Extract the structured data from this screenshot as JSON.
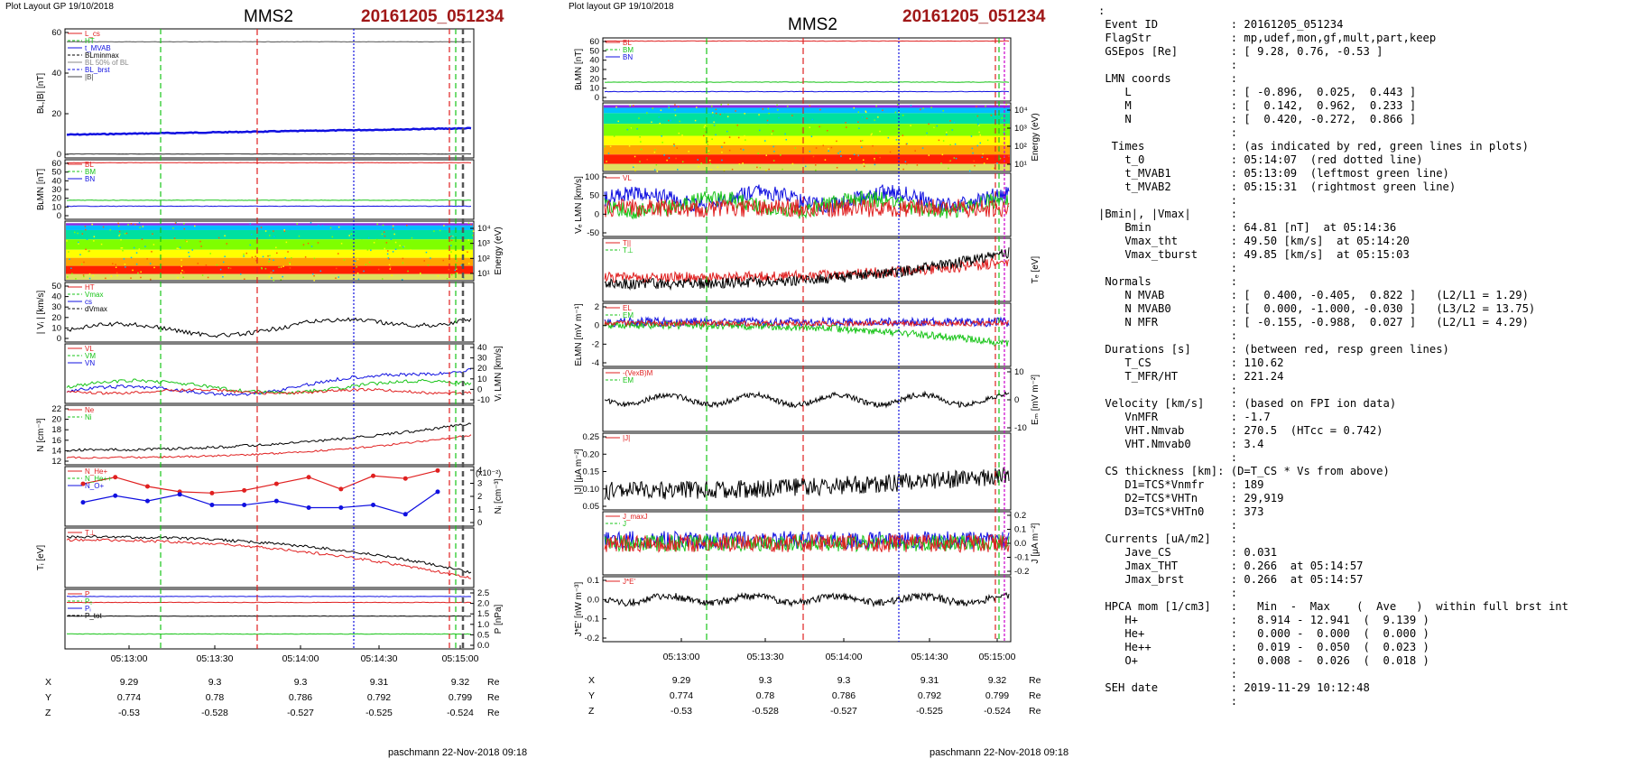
{
  "left_plot": {
    "header": "Plot Layout GP 19/10/2018",
    "probe": "MMS2",
    "event": "20161205_051234",
    "footer": "paschmann 22-Nov-2018 09:18",
    "panels": [
      {
        "ylabel": "Bʟ,|B| [nT]",
        "ticks": [
          "0",
          "20",
          "40",
          "60"
        ],
        "right_ticks": [],
        "legend": [
          "L_cs",
          "HT",
          "t_MVAB",
          "BLminmax",
          "BL 50% of BL",
          "BL_brst",
          "|B|"
        ]
      },
      {
        "ylabel": "BʟMN [nT]",
        "ticks": [
          "0",
          "10",
          "20",
          "30",
          "40",
          "50",
          "60"
        ],
        "right_ticks": [],
        "legend": [
          "BL",
          "BM",
          "BN"
        ]
      },
      {
        "ylabel": "",
        "ticks": [],
        "right_ticks": [
          "10⁴",
          "10³",
          "10²",
          "10¹"
        ],
        "right_label": "Energy (eV)",
        "legend": []
      },
      {
        "ylabel": "| Vᵢ | [km/s]",
        "ticks": [
          "0",
          "10",
          "20",
          "30",
          "40",
          "50"
        ],
        "right_ticks": [],
        "legend": [
          "HT",
          "Vmax",
          "cs",
          "dVmax"
        ]
      },
      {
        "ylabel": "",
        "ticks": [],
        "right_ticks": [
          "-10",
          "0",
          "10",
          "20",
          "30",
          "40"
        ],
        "right_label": "Vᵢ LMN [km/s]",
        "legend": [
          "VL",
          "VM",
          "VN"
        ]
      },
      {
        "ylabel": "N [cm⁻³]",
        "ticks": [
          "12",
          "14",
          "16",
          "18",
          "20",
          "22"
        ],
        "right_ticks": [],
        "legend": [
          "Ne",
          "Ni"
        ]
      },
      {
        "ylabel": "",
        "ticks": [],
        "right_ticks": [
          "0",
          "1",
          "2",
          "3",
          "4"
        ],
        "right_label": "Nᵢ [cm⁻³]",
        "extra": "(x10⁻²)",
        "legend": [
          "N_He+",
          "N_He++",
          "N_O+"
        ]
      },
      {
        "ylabel": "Tᵢ [eV]",
        "ticks": [],
        "right_ticks": [],
        "legend": [
          "T⊥"
        ]
      },
      {
        "ylabel": "",
        "ticks": [],
        "right_ticks": [
          "0.0",
          "0.5",
          "1.0",
          "1.5",
          "2.0",
          "2.5"
        ],
        "right_label": "P [nPa]",
        "legend": [
          "P",
          "Pₑ",
          "Pᵢ",
          "P_tot"
        ]
      }
    ],
    "time_ticks": [
      "05:13:00",
      "05:13:30",
      "05:14:00",
      "05:14:30",
      "05:15:00"
    ],
    "pos_rows": [
      {
        "label": "X",
        "values": [
          "9.29",
          "9.3",
          "9.3",
          "9.31",
          "9.32"
        ],
        "unit": "Re"
      },
      {
        "label": "Y",
        "values": [
          "0.774",
          "0.78",
          "0.786",
          "0.792",
          "0.799"
        ],
        "unit": "Re"
      },
      {
        "label": "Z",
        "values": [
          "-0.53",
          "-0.528",
          "-0.527",
          "-0.525",
          "-0.524"
        ],
        "unit": "Re"
      }
    ]
  },
  "middle_plot": {
    "header": "Plot layout GP 19/10/2018",
    "probe": "MMS2",
    "event": "20161205_051234",
    "footer": "paschmann 22-Nov-2018 09:18",
    "panels": [
      {
        "ylabel": "BʟMN [nT]",
        "ticks": [
          "0",
          "10",
          "20",
          "30",
          "40",
          "50",
          "60"
        ],
        "right_ticks": [],
        "legend": [
          "BL",
          "BM",
          "BN"
        ]
      },
      {
        "ylabel": "",
        "ticks": [],
        "right_ticks": [
          "10⁴",
          "10³",
          "10²",
          "10¹"
        ],
        "right_label": "Energy (eV)",
        "legend": []
      },
      {
        "ylabel": "Vₑ LMN [km/s]",
        "ticks": [
          "-50",
          "0",
          "50",
          "100"
        ],
        "right_ticks": [],
        "legend": [
          "VL"
        ]
      },
      {
        "ylabel": "",
        "ticks": [],
        "right_ticks": [],
        "right_label": "Tₑ [eV]",
        "legend": [
          "T||",
          "T⊥"
        ]
      },
      {
        "ylabel": "EʟMN [mV m⁻¹]",
        "ticks": [
          "-4",
          "-2",
          "0",
          "2"
        ],
        "right_ticks": [],
        "legend": [
          "EL",
          "EM"
        ]
      },
      {
        "ylabel": "",
        "ticks": [],
        "right_ticks": [
          "-10",
          "0",
          "10"
        ],
        "right_label": "Eₘ [mV m⁻²]",
        "legend": [
          "-(VexB)M",
          "EM"
        ]
      },
      {
        "ylabel": "|J| [μA m⁻²]",
        "ticks": [
          "0.05",
          "0.10",
          "0.15",
          "0.20",
          "0.25"
        ],
        "right_ticks": [],
        "legend": [
          "|J|"
        ]
      },
      {
        "ylabel": "",
        "ticks": [],
        "right_ticks": [
          "-0.2",
          "-0.1",
          "0.0",
          "0.1",
          "0.2"
        ],
        "right_label": "J [μA m⁻²]",
        "legend": [
          "J_maxJ",
          "J"
        ]
      },
      {
        "ylabel": "J*E' [nW m⁻³]",
        "ticks": [
          "-0.2",
          "-0.1",
          "0.0",
          "0.1"
        ],
        "right_ticks": [],
        "legend": [
          "J*E'"
        ]
      }
    ],
    "time_ticks": [
      "05:13:00",
      "05:13:30",
      "05:14:00",
      "05:14:30",
      "05:15:00"
    ],
    "pos_rows": [
      {
        "label": "X",
        "values": [
          "9.29",
          "9.3",
          "9.3",
          "9.31",
          "9.32"
        ],
        "unit": "Re"
      },
      {
        "label": "Y",
        "values": [
          "0.774",
          "0.78",
          "0.786",
          "0.792",
          "0.799"
        ],
        "unit": "Re"
      },
      {
        "label": "Z",
        "values": [
          "-0.53",
          "-0.528",
          "-0.527",
          "-0.525",
          "-0.524"
        ],
        "unit": "Re"
      }
    ]
  },
  "info_lines": [
    ":",
    " Event ID           : 20161205_051234",
    " FlagStr            : mp,udef,mon,gf,mult,part,keep",
    " GSEpos [Re]        : [ 9.28, 0.76, -0.53 ]",
    "                    :",
    " LMN coords         :",
    "    L               : [ -0.896,  0.025,  0.443 ]",
    "    M               : [  0.142,  0.962,  0.233 ]",
    "    N               : [  0.420, -0.272,  0.866 ]",
    "                    :",
    "  Times             : (as indicated by red, green lines in plots)",
    "    t_0             : 05:14:07  (red dotted line)",
    "    t_MVAB1         : 05:13:09  (leftmost green line)",
    "    t_MVAB2         : 05:15:31  (rightmost green line)",
    "                    :",
    "|Bmin|, |Vmax|      :",
    "    Bmin            : 64.81 [nT]  at 05:14:36",
    "    Vmax_tht        : 49.50 [km/s]  at 05:14:20",
    "    Vmax_tburst     : 49.85 [km/s]  at 05:15:03",
    "                    :",
    " Normals            :",
    "    N MVAB          : [  0.400, -0.405,  0.822 ]   (L2/L1 = 1.29)",
    "    N MVAB0         : [  0.000, -1.000, -0.030 ]   (L3/L2 = 13.75)",
    "    N MFR           : [ -0.155, -0.988,  0.027 ]   (L2/L1 = 4.29)",
    "                    :",
    " Durations [s]      : (between red, resp green lines)",
    "    T_CS            : 110.62",
    "    T_MFR/HT        : 221.24",
    "                    :",
    " Velocity [km/s]    : (based on FPI ion data)",
    "    VnMFR           : -1.7",
    "    VHT.Nmvab       : 270.5  (HTcc = 0.742)",
    "    VHT.Nmvab0      : 3.4",
    "                    :",
    " CS thickness [km]: (D=T_CS * Vs from above)",
    "    D1=TCS*Vnmfr    : 189",
    "    D2=TCS*VHTn     : 29,919",
    "    D3=TCS*VHTn0    : 373",
    "                    :",
    " Currents [uA/m2]   :",
    "    Jave_CS         : 0.031",
    "    Jmax_THT        : 0.266  at 05:14:57",
    "    Jmax_brst       : 0.266  at 05:14:57",
    "                    :",
    " HPCA mom [1/cm3]   :   Min  -  Max    (  Ave   )  within full brst int",
    "    H+              :   8.914 - 12.941  (  9.139 )",
    "    He+             :   0.000 -  0.000  (  0.000 )",
    "    He++            :   0.019 -  0.050  (  0.023 )",
    "    O+              :   0.008 -  0.026  (  0.018 )",
    "                    :",
    " SEH date           : 2019-11-29 10:12:48",
    "                    :"
  ],
  "colors": {
    "red": "#e02020",
    "green": "#18c418",
    "blue": "#1010e0",
    "black": "#000000",
    "title_red": "#a01818"
  },
  "chart_data": [
    {
      "type": "line",
      "title": "MMS2 20161205_051234",
      "xlabel": "",
      "x_ticks": [
        "05:13:00",
        "05:13:30",
        "05:14:00",
        "05:14:30",
        "05:15:00"
      ],
      "series": [
        {
          "name": "|B|",
          "approx_level": 11,
          "ylim": [
            0,
            65
          ]
        },
        {
          "name": "BL",
          "approx_level": 62,
          "ylim": [
            0,
            65
          ]
        },
        {
          "name": "BM",
          "approx_level": 16,
          "ylim": [
            0,
            65
          ]
        },
        {
          "name": "BN",
          "approx_level": 4,
          "ylim": [
            0,
            65
          ]
        },
        {
          "name": "|Vi|",
          "ylim": [
            0,
            50
          ]
        },
        {
          "name": "Ne",
          "ylim": [
            11,
            22
          ]
        },
        {
          "name": "Ni",
          "ylim": [
            11,
            22
          ]
        },
        {
          "name": "N_He++",
          "x": [
            "05:12:40",
            "05:12:52",
            "05:13:05",
            "05:13:18",
            "05:13:30",
            "05:13:42",
            "05:13:55",
            "05:14:08",
            "05:14:20",
            "05:14:32",
            "05:14:45",
            "05:14:58"
          ],
          "values": [
            3.2,
            3.7,
            3.0,
            2.6,
            2.5,
            2.7,
            3.2,
            3.7,
            2.8,
            3.8,
            3.6,
            4.2
          ],
          "ylim": [
            0,
            4.5
          ]
        },
        {
          "name": "N_O+",
          "x": [
            "05:12:40",
            "05:12:52",
            "05:13:05",
            "05:13:18",
            "05:13:30",
            "05:13:42",
            "05:13:55",
            "05:14:08",
            "05:14:20",
            "05:14:32",
            "05:14:45",
            "05:14:58"
          ],
          "values": [
            1.8,
            2.3,
            1.9,
            2.4,
            1.6,
            1.6,
            1.9,
            1.4,
            1.4,
            1.6,
            0.9,
            2.6
          ],
          "ylim": [
            0,
            4.5
          ]
        }
      ]
    }
  ]
}
